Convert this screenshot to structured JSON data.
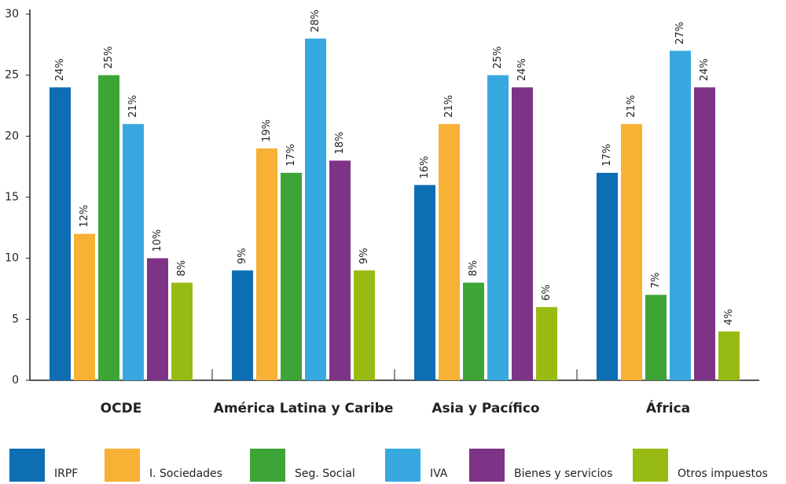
{
  "chart_data": {
    "type": "bar",
    "categories": [
      "OCDE",
      "América Latina y Caribe",
      "Asia y Pacífico",
      "África"
    ],
    "series": [
      {
        "name": "IRPF",
        "color": "#0e6eb3",
        "values": [
          24,
          9,
          16,
          17
        ],
        "value_labels": [
          "24%",
          "9%",
          "16%",
          "17%"
        ]
      },
      {
        "name": "I. Sociedades",
        "color": "#f7b135",
        "values": [
          12,
          19,
          21,
          21
        ],
        "value_labels": [
          "12%",
          "19%",
          "21%",
          "21%"
        ]
      },
      {
        "name": "Seg. Social",
        "color": "#3da535",
        "values": [
          25,
          17,
          8,
          7
        ],
        "value_labels": [
          "25%",
          "17%",
          "8%",
          "7%"
        ]
      },
      {
        "name": "IVA",
        "color": "#38a9e0",
        "values": [
          21,
          28,
          25,
          27
        ],
        "value_labels": [
          "21%",
          "28%",
          "25%",
          "27%"
        ]
      },
      {
        "name": "Bienes y servicios",
        "color": "#7d3386",
        "values": [
          10,
          18,
          24,
          24
        ],
        "value_labels": [
          "10%",
          "18%",
          "24%",
          "24%"
        ]
      },
      {
        "name": "Otros impuestos",
        "color": "#98bb13",
        "values": [
          8,
          9,
          6,
          4
        ],
        "value_labels": [
          "8%",
          "9%",
          "6%",
          "4%"
        ]
      }
    ],
    "ylim": [
      0,
      30
    ],
    "yticks": [
      0,
      5,
      10,
      15,
      20,
      25,
      30
    ],
    "grid": false,
    "legend": "bottom"
  }
}
